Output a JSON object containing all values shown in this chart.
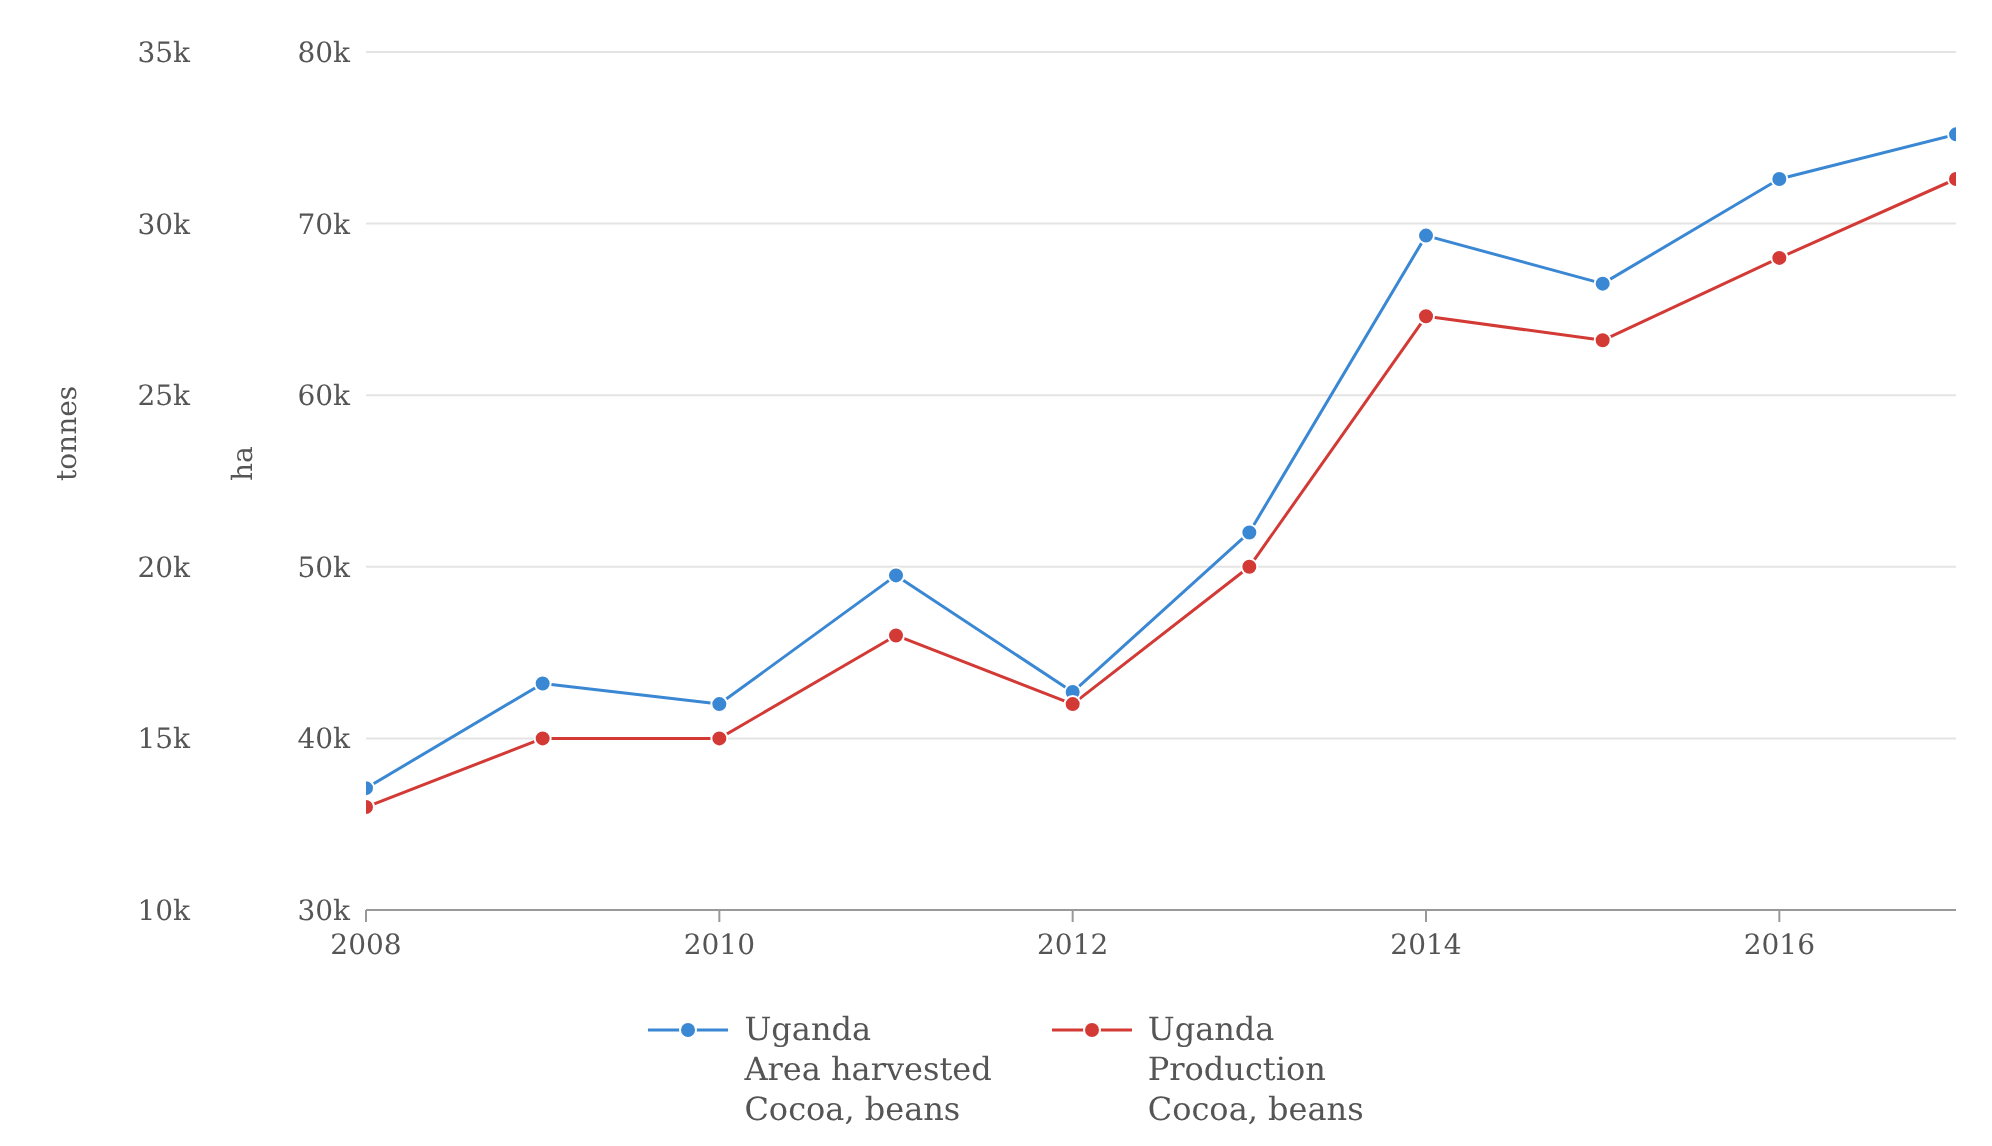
{
  "chart_data": {
    "type": "line",
    "x": [
      2008,
      2009,
      2010,
      2011,
      2012,
      2013,
      2014,
      2015,
      2016,
      2017
    ],
    "series": [
      {
        "name": "Uganda\nArea harvested\nCocoa, beans",
        "color": "#3a87d4",
        "values": [
          37100,
          43200,
          42000,
          49500,
          42700,
          52000,
          69300,
          66500,
          72600,
          75200
        ]
      },
      {
        "name": "Uganda\nProduction\nCocoa, beans",
        "color": "#d33a36",
        "axis": "y2",
        "values": [
          13000,
          15000,
          15000,
          18000,
          16000,
          20000,
          27300,
          26600,
          29000,
          31300
        ]
      }
    ],
    "xlim": [
      2008,
      2017
    ],
    "xticks": [
      2008,
      2010,
      2012,
      2014,
      2016
    ],
    "ylabel": "ha",
    "ylim": [
      30000,
      80000
    ],
    "yticks": [
      {
        "value": 30000,
        "label": "30k"
      },
      {
        "value": 40000,
        "label": "40k"
      },
      {
        "value": 50000,
        "label": "50k"
      },
      {
        "value": 60000,
        "label": "60k"
      },
      {
        "value": 70000,
        "label": "70k"
      },
      {
        "value": 80000,
        "label": "80k"
      }
    ],
    "y2label": "tonnes",
    "y2lim": [
      10000,
      35000
    ],
    "y2ticks": [
      {
        "value": 10000,
        "label": "10k"
      },
      {
        "value": 15000,
        "label": "15k"
      },
      {
        "value": 20000,
        "label": "20k"
      },
      {
        "value": 25000,
        "label": "25k"
      },
      {
        "value": 30000,
        "label": "30k"
      },
      {
        "value": 35000,
        "label": "35k"
      }
    ],
    "grid": "y",
    "legend": "bottom",
    "marker": "circle",
    "line_style": "solid"
  }
}
